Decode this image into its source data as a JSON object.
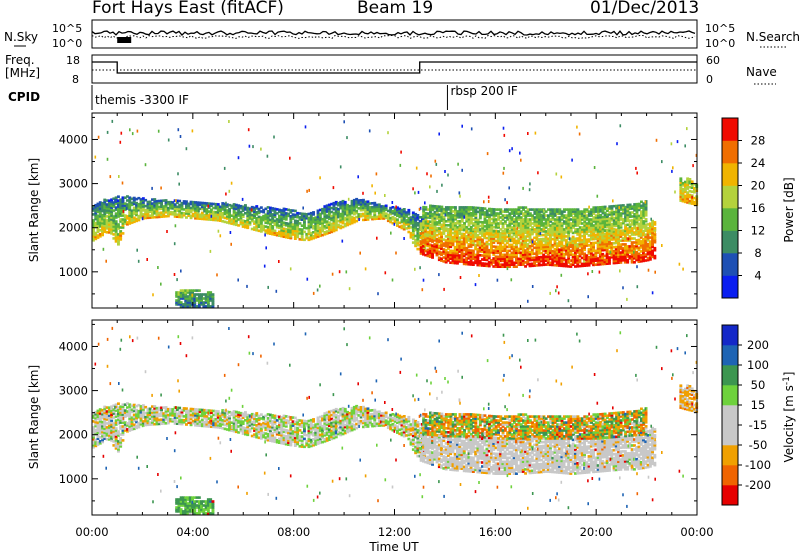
{
  "header": {
    "title": "Fort Hays East (fitACF)",
    "beam": "Beam 19",
    "date": "01/Dec/2013"
  },
  "noise_panel": {
    "left_label": "N.Sky",
    "right_label": "N.Search",
    "left_ticks": [
      "10^5",
      "10^0"
    ],
    "right_ticks": [
      "10^5",
      "10^0"
    ]
  },
  "freq_panel": {
    "left_label_line1": "Freq.",
    "left_label_line2": "[MHz]",
    "right_label": "Nave",
    "left_ticks": [
      "18",
      "8"
    ],
    "right_ticks": [
      "60",
      "0"
    ]
  },
  "cpid_panel": {
    "label": "CPID",
    "segments": [
      {
        "start_hour": 0.0,
        "label": "themis -3300 IF"
      },
      {
        "start_hour": 14.1,
        "label": "rbsp 200 IF"
      }
    ]
  },
  "colors": {
    "power_scale": [
      "#0a1ef0",
      "#1e50b4",
      "#3c8c64",
      "#5ab43c",
      "#b4d23c",
      "#f0b400",
      "#f06e00",
      "#f00a00"
    ],
    "velocity_scale": [
      "#e60000",
      "#f06400",
      "#f0a000",
      "#c8c8c8",
      "#c8c8c8",
      "#6ed23c",
      "#3c9650",
      "#1e64b4",
      "#1428c8"
    ],
    "ground_scatter": "#bebebe"
  },
  "chart_data": {
    "type": "heatmap",
    "xlabel": "Time UT",
    "x_tick_labels": [
      "00:00",
      "04:00",
      "08:00",
      "12:00",
      "16:00",
      "20:00",
      "00:00"
    ],
    "x_range_hours": [
      0,
      24
    ],
    "power_panel": {
      "ylabel": "Slant Range [km]",
      "ylim": [
        180,
        4600
      ],
      "y_ticks": [
        1000,
        2000,
        3000,
        4000
      ],
      "colorbar_label": "Power [dB]",
      "colorbar_ticks": [
        "4",
        "8",
        "12",
        "16",
        "20",
        "24",
        "28"
      ],
      "colorbar_range": [
        0,
        32
      ]
    },
    "velocity_panel": {
      "ylabel": "Slant Range [km]",
      "ylim": [
        180,
        4600
      ],
      "y_ticks": [
        1000,
        2000,
        3000,
        4000
      ],
      "colorbar_label": "Velocity [m s^-1]",
      "colorbar_ticks": [
        "-200",
        "-100",
        "-50",
        "-15",
        "15",
        "50",
        "100",
        "200"
      ]
    },
    "scatter_bands": [
      {
        "hours": [
          0.0,
          0.3,
          0.6,
          1.0,
          1.3,
          2.0,
          3.0,
          4.0,
          5.0,
          6.0,
          7.0,
          7.8,
          8.5,
          9.5,
          10.5,
          11.5,
          12.5,
          12.8,
          13.2
        ],
        "lower_km": [
          1700,
          1800,
          1900,
          1600,
          2050,
          2200,
          2250,
          2200,
          2150,
          2000,
          1850,
          1750,
          1700,
          1900,
          2150,
          2200,
          1900,
          1500,
          1500
        ],
        "upper_km": [
          2500,
          2600,
          2650,
          2700,
          2700,
          2650,
          2600,
          2600,
          2550,
          2500,
          2450,
          2400,
          2300,
          2550,
          2650,
          2500,
          2400,
          2300,
          2200
        ],
        "power_low_db": 22,
        "power_high_db": 6,
        "velocity_ms": [
          0,
          10,
          -20,
          40
        ]
      },
      {
        "hours": [
          13.0,
          14.0,
          15.0,
          16.0,
          17.0,
          18.0,
          19.0,
          20.0,
          21.0,
          21.5,
          22.0,
          22.3
        ],
        "lower_km": [
          1400,
          1200,
          1150,
          1100,
          1100,
          1150,
          1100,
          1150,
          1200,
          1200,
          1250,
          1300
        ],
        "upper_km": [
          2100,
          2000,
          2000,
          1950,
          1950,
          1900,
          1900,
          1950,
          1950,
          2000,
          2100,
          2200
        ],
        "power_low_db": 30,
        "power_high_db": 18,
        "velocity_ms": [
          0,
          5,
          -10,
          0
        ]
      },
      {
        "hours": [
          13.1,
          14.0,
          15.0,
          16.0,
          17.0,
          18.0,
          19.0,
          20.0,
          21.0,
          22.0
        ],
        "lower_km": [
          2000,
          1950,
          1950,
          1900,
          1900,
          1900,
          1900,
          1900,
          1950,
          2000
        ],
        "upper_km": [
          2500,
          2450,
          2450,
          2400,
          2450,
          2400,
          2400,
          2450,
          2500,
          2600
        ],
        "power_low_db": 18,
        "power_high_db": 12,
        "velocity_ms": [
          -30,
          20,
          60,
          -60
        ]
      },
      {
        "hours": [
          23.3,
          23.6,
          24.0
        ],
        "lower_km": [
          2600,
          2550,
          2500
        ],
        "upper_km": [
          3100,
          3100,
          3000
        ],
        "power_low_db": 22,
        "power_high_db": 16,
        "velocity_ms": [
          -40,
          -20,
          0
        ]
      },
      {
        "hours": [
          3.3,
          4.0,
          4.8
        ],
        "lower_km": [
          200,
          200,
          200
        ],
        "upper_km": [
          550,
          600,
          500
        ],
        "power_low_db": 8,
        "power_high_db": 14,
        "velocity_ms": [
          30,
          60,
          80
        ]
      }
    ]
  }
}
